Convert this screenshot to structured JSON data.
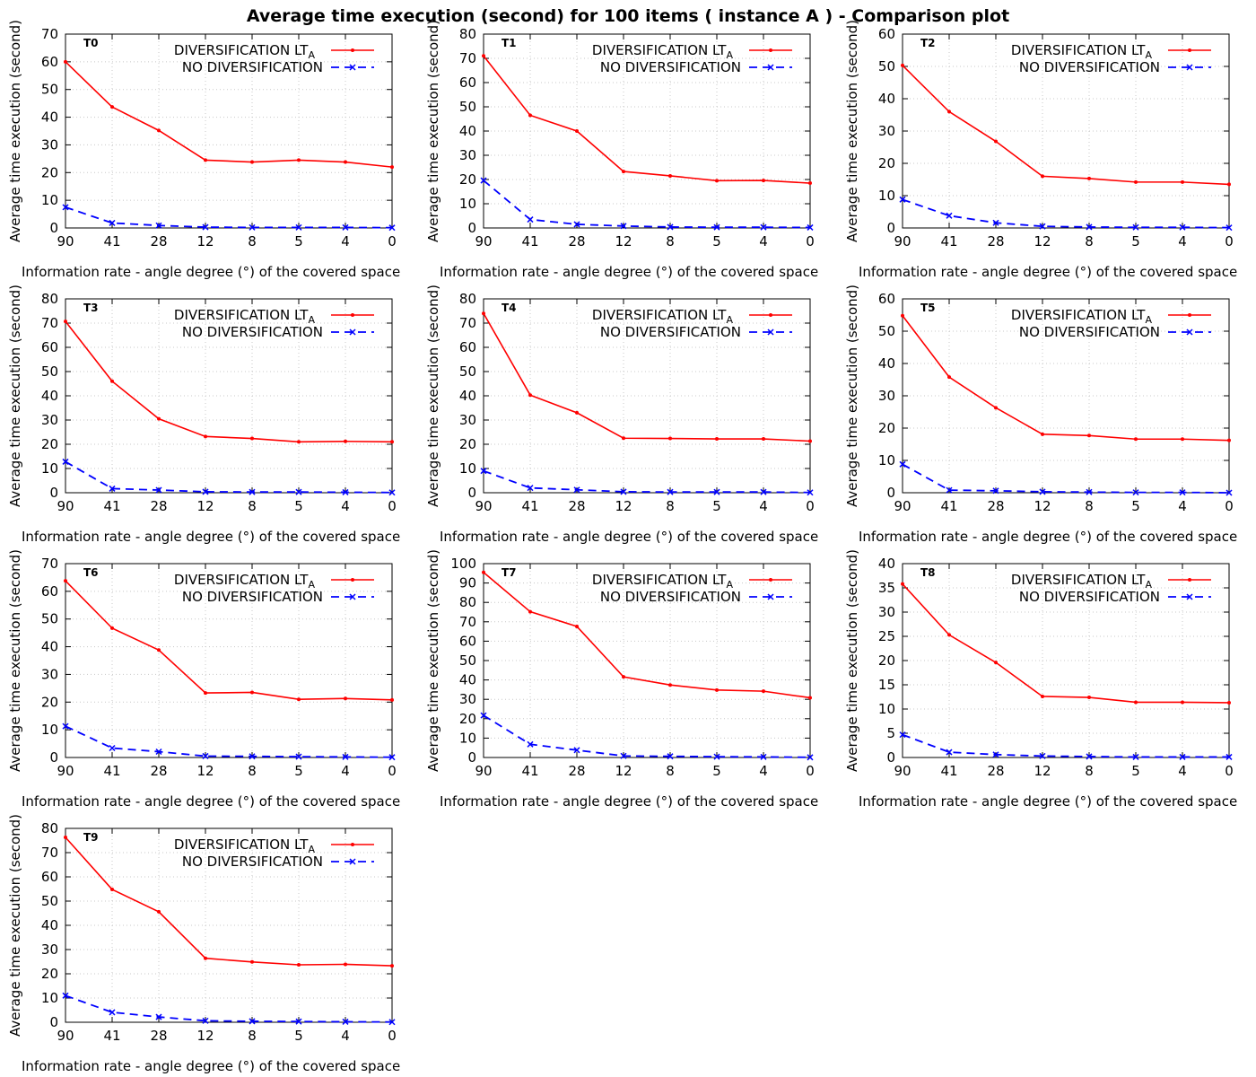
{
  "figure": {
    "title": "Average time execution (second) for 100 items ( instance A ) - Comparison plot"
  },
  "colors": {
    "diversification": "#ff0000",
    "no_diversification": "#0000ff",
    "grid": "#c8c8c8"
  },
  "chart_data": [
    {
      "type": "line",
      "title": "T0",
      "categories": [
        "90",
        "41",
        "28",
        "12",
        "8",
        "5",
        "4",
        "0"
      ],
      "xlabel": "Information rate - angle degree (°)  of the covered space",
      "ylabel": "Average time execution (second)",
      "ylim": [
        0,
        70
      ],
      "ystep": 10,
      "grid": true,
      "legend_position": "top-right",
      "series": [
        {
          "name": "DIVERSIFICATION LT",
          "name_sub": "A",
          "style": "solid",
          "marker": "dot",
          "values": [
            60,
            43.7,
            35.2,
            24.5,
            23.8,
            24.5,
            23.8,
            22
          ]
        },
        {
          "name": "NO DIVERSIFICATION",
          "name_sub": "",
          "style": "dashed",
          "marker": "x",
          "values": [
            7.5,
            1.8,
            0.9,
            0.3,
            0.2,
            0.2,
            0.2,
            0.1
          ]
        }
      ]
    },
    {
      "type": "line",
      "title": "T1",
      "categories": [
        "90",
        "41",
        "28",
        "12",
        "8",
        "5",
        "4",
        "0"
      ],
      "xlabel": "Information rate - angle degree (°)  of the covered space",
      "ylabel": "Average time execution (second)",
      "ylim": [
        0,
        80
      ],
      "ystep": 10,
      "grid": true,
      "legend_position": "top-right",
      "series": [
        {
          "name": "DIVERSIFICATION LT",
          "name_sub": "A",
          "style": "solid",
          "marker": "dot",
          "values": [
            71,
            46.5,
            40,
            23.3,
            21.5,
            19.5,
            19.6,
            18.5
          ]
        },
        {
          "name": "NO DIVERSIFICATION",
          "name_sub": "",
          "style": "dashed",
          "marker": "x",
          "values": [
            19.6,
            3.5,
            1.5,
            0.8,
            0.4,
            0.3,
            0.3,
            0.2
          ]
        }
      ]
    },
    {
      "type": "line",
      "title": "T2",
      "categories": [
        "90",
        "41",
        "28",
        "12",
        "8",
        "5",
        "4",
        "0"
      ],
      "xlabel": "Information rate - angle degree (°)  of the covered space",
      "ylabel": "Average time execution (second)",
      "ylim": [
        0,
        60
      ],
      "ystep": 10,
      "grid": true,
      "legend_position": "top-right",
      "series": [
        {
          "name": "DIVERSIFICATION LT",
          "name_sub": "A",
          "style": "solid",
          "marker": "dot",
          "values": [
            50.3,
            36,
            26.8,
            16,
            15.3,
            14.2,
            14.2,
            13.5
          ]
        },
        {
          "name": "NO DIVERSIFICATION",
          "name_sub": "",
          "style": "dashed",
          "marker": "x",
          "values": [
            8.8,
            3.8,
            1.6,
            0.5,
            0.3,
            0.2,
            0.2,
            0.1
          ]
        }
      ]
    },
    {
      "type": "line",
      "title": "T3",
      "categories": [
        "90",
        "41",
        "28",
        "12",
        "8",
        "5",
        "4",
        "0"
      ],
      "xlabel": "Information rate - angle degree (°)  of the covered space",
      "ylabel": "Average time execution (second)",
      "ylim": [
        0,
        80
      ],
      "ystep": 10,
      "grid": true,
      "legend_position": "top-right",
      "series": [
        {
          "name": "DIVERSIFICATION LT",
          "name_sub": "A",
          "style": "solid",
          "marker": "dot",
          "values": [
            70.7,
            46,
            30.5,
            23.2,
            22.4,
            21,
            21.2,
            21
          ]
        },
        {
          "name": "NO DIVERSIFICATION",
          "name_sub": "",
          "style": "dashed",
          "marker": "x",
          "values": [
            12.8,
            1.7,
            1.1,
            0.4,
            0.3,
            0.3,
            0.2,
            0.1
          ]
        }
      ]
    },
    {
      "type": "line",
      "title": "T4",
      "categories": [
        "90",
        "41",
        "28",
        "12",
        "8",
        "5",
        "4",
        "0"
      ],
      "xlabel": "Information rate - angle degree (°)  of the covered space",
      "ylabel": "Average time execution (second)",
      "ylim": [
        0,
        80
      ],
      "ystep": 10,
      "grid": true,
      "legend_position": "top-right",
      "series": [
        {
          "name": "DIVERSIFICATION LT",
          "name_sub": "A",
          "style": "solid",
          "marker": "dot",
          "values": [
            74,
            40.3,
            33,
            22.5,
            22.4,
            22.2,
            22.2,
            21.3
          ]
        },
        {
          "name": "NO DIVERSIFICATION",
          "name_sub": "",
          "style": "dashed",
          "marker": "x",
          "values": [
            9,
            2,
            1.2,
            0.4,
            0.3,
            0.3,
            0.3,
            0.1
          ]
        }
      ]
    },
    {
      "type": "line",
      "title": "T5",
      "categories": [
        "90",
        "41",
        "28",
        "12",
        "8",
        "5",
        "4",
        "0"
      ],
      "xlabel": "Information rate - angle degree (°)  of the covered space",
      "ylabel": "Average time execution (second)",
      "ylim": [
        0,
        60
      ],
      "ystep": 10,
      "grid": true,
      "legend_position": "top-right",
      "series": [
        {
          "name": "DIVERSIFICATION LT",
          "name_sub": "A",
          "style": "solid",
          "marker": "dot",
          "values": [
            54.8,
            35.8,
            26.3,
            18.1,
            17.7,
            16.6,
            16.6,
            16.2
          ]
        },
        {
          "name": "NO DIVERSIFICATION",
          "name_sub": "",
          "style": "dashed",
          "marker": "x",
          "values": [
            8.8,
            0.8,
            0.6,
            0.3,
            0.2,
            0.1,
            0.1,
            0
          ]
        }
      ]
    },
    {
      "type": "line",
      "title": "T6",
      "categories": [
        "90",
        "41",
        "28",
        "12",
        "8",
        "5",
        "4",
        "0"
      ],
      "xlabel": "Information rate - angle degree (°)  of the covered space",
      "ylabel": "Average time execution (second)",
      "ylim": [
        0,
        70
      ],
      "ystep": 10,
      "grid": true,
      "legend_position": "top-right",
      "series": [
        {
          "name": "DIVERSIFICATION LT",
          "name_sub": "A",
          "style": "solid",
          "marker": "dot",
          "values": [
            63.8,
            46.7,
            38.8,
            23.3,
            23.5,
            21,
            21.3,
            20.8
          ]
        },
        {
          "name": "NO DIVERSIFICATION",
          "name_sub": "",
          "style": "dashed",
          "marker": "x",
          "values": [
            11.3,
            3.4,
            2.1,
            0.5,
            0.4,
            0.3,
            0.2,
            0.1
          ]
        }
      ]
    },
    {
      "type": "line",
      "title": "T7",
      "categories": [
        "90",
        "41",
        "28",
        "12",
        "8",
        "5",
        "4",
        "0"
      ],
      "xlabel": "Information rate - angle degree (°)  of the covered space",
      "ylabel": "Average time execution (second)",
      "ylim": [
        0,
        100
      ],
      "ystep": 10,
      "grid": true,
      "legend_position": "top-right",
      "series": [
        {
          "name": "DIVERSIFICATION LT",
          "name_sub": "A",
          "style": "solid",
          "marker": "dot",
          "values": [
            95.5,
            75.2,
            67.6,
            41.6,
            37.4,
            34.8,
            34.2,
            30.8
          ]
        },
        {
          "name": "NO DIVERSIFICATION",
          "name_sub": "",
          "style": "dashed",
          "marker": "x",
          "values": [
            21.7,
            6.8,
            3.8,
            0.8,
            0.6,
            0.4,
            0.3,
            0.1
          ]
        }
      ]
    },
    {
      "type": "line",
      "title": "T8",
      "categories": [
        "90",
        "41",
        "28",
        "12",
        "8",
        "5",
        "4",
        "0"
      ],
      "xlabel": "Information rate - angle degree (°)  of the covered space",
      "ylabel": "Average time execution (second)",
      "ylim": [
        0,
        40
      ],
      "ystep": 5,
      "grid": true,
      "legend_position": "top-right",
      "series": [
        {
          "name": "DIVERSIFICATION LT",
          "name_sub": "A",
          "style": "solid",
          "marker": "dot",
          "values": [
            35.8,
            25.3,
            19.6,
            12.6,
            12.4,
            11.4,
            11.4,
            11.3
          ]
        },
        {
          "name": "NO DIVERSIFICATION",
          "name_sub": "",
          "style": "dashed",
          "marker": "x",
          "values": [
            4.7,
            1.1,
            0.6,
            0.3,
            0.2,
            0.1,
            0.1,
            0.1
          ]
        }
      ]
    },
    {
      "type": "line",
      "title": "T9",
      "categories": [
        "90",
        "41",
        "28",
        "12",
        "8",
        "5",
        "4",
        "0"
      ],
      "xlabel": "Information rate - angle degree (°)  of the covered space",
      "ylabel": "Average time execution (second)",
      "ylim": [
        0,
        80
      ],
      "ystep": 10,
      "grid": true,
      "legend_position": "top-right",
      "series": [
        {
          "name": "DIVERSIFICATION LT",
          "name_sub": "A",
          "style": "solid",
          "marker": "dot",
          "values": [
            76.3,
            54.8,
            45.6,
            26.4,
            24.9,
            23.7,
            23.9,
            23.3
          ]
        },
        {
          "name": "NO DIVERSIFICATION",
          "name_sub": "",
          "style": "dashed",
          "marker": "x",
          "values": [
            11,
            4.1,
            2.2,
            0.6,
            0.4,
            0.3,
            0.2,
            0.1
          ]
        }
      ]
    }
  ]
}
